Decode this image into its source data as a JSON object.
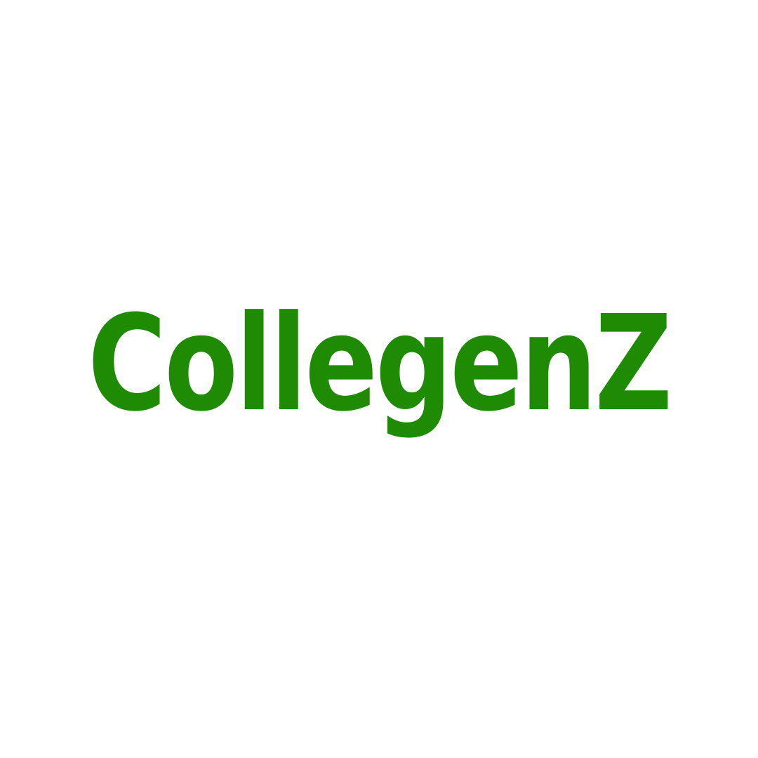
{
  "logo": {
    "wordmark": "CollegenZ",
    "color": "#1f8a04"
  },
  "background_color": "#ffffff"
}
